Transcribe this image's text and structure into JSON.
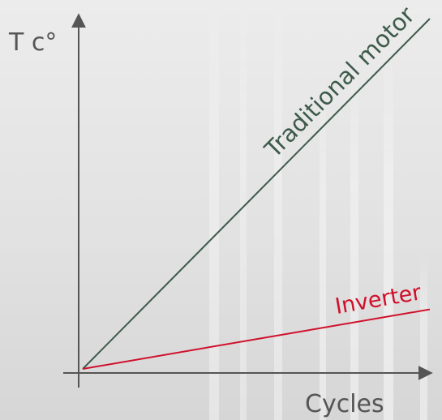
{
  "chart_data": {
    "type": "line",
    "title": "",
    "xlabel": "Cycles",
    "ylabel": "T c°",
    "grid": false,
    "legend": "none",
    "series": [
      {
        "name": "Traditional motor",
        "color": "#3d5a4a",
        "x": [
          0,
          1
        ],
        "y": [
          0,
          1
        ]
      },
      {
        "name": "Inverter",
        "color": "#d0102b",
        "x": [
          0,
          1
        ],
        "y": [
          0,
          0.17
        ]
      }
    ]
  },
  "colors": {
    "axis": "#555555",
    "background_light": "#f1f1f1",
    "background_dark": "#d9d9d9"
  }
}
